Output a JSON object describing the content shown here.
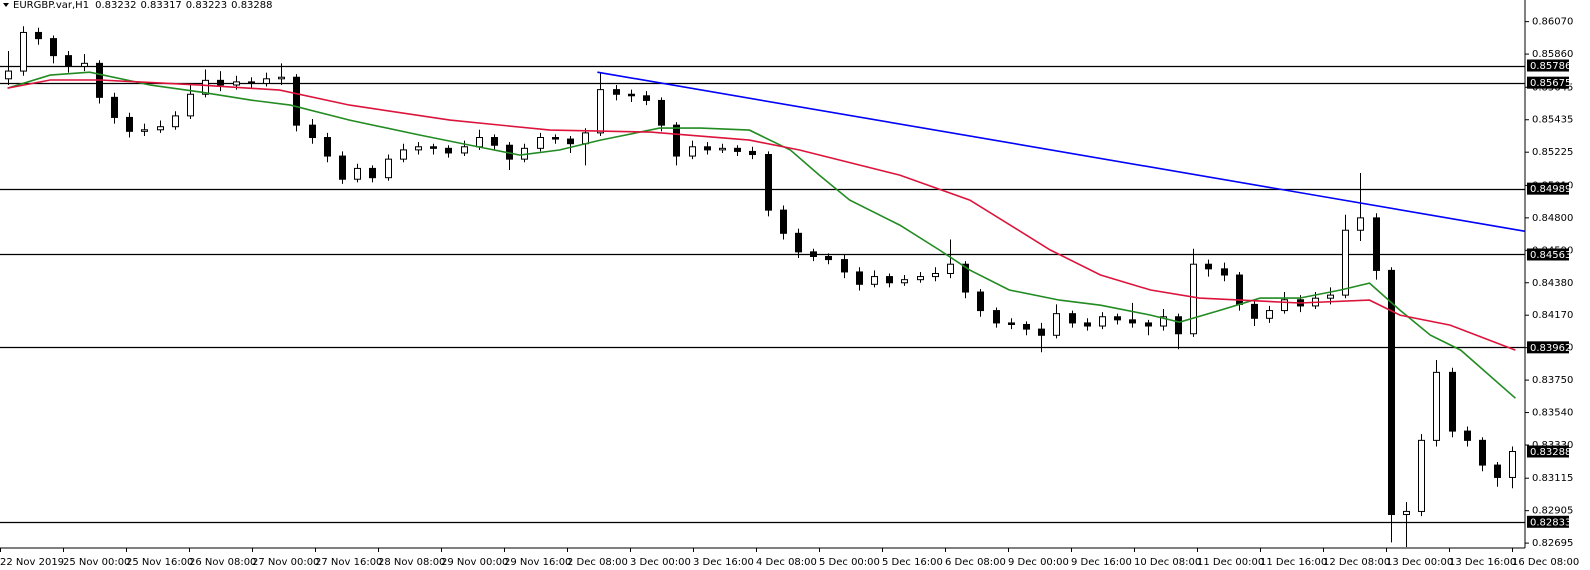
{
  "header": {
    "symbol": "EURGBP.var,H1",
    "open": 0.83232,
    "high": 0.83317,
    "low": 0.83223,
    "close": 0.83288
  },
  "chart_data": {
    "type": "candlestick",
    "candles": [
      [
        0.857,
        0.8588,
        0.8566,
        0.8575
      ],
      [
        0.8575,
        0.8604,
        0.8572,
        0.86
      ],
      [
        0.86,
        0.8603,
        0.8592,
        0.8596
      ],
      [
        0.8596,
        0.8598,
        0.858,
        0.8585
      ],
      [
        0.8585,
        0.8588,
        0.8574,
        0.8578
      ],
      [
        0.8578,
        0.8586,
        0.8575,
        0.858
      ],
      [
        0.858,
        0.8582,
        0.8554,
        0.8558
      ],
      [
        0.8558,
        0.8561,
        0.8541,
        0.8545
      ],
      [
        0.8545,
        0.8548,
        0.8532,
        0.8536
      ],
      [
        0.8536,
        0.8541,
        0.8533,
        0.8537
      ],
      [
        0.8537,
        0.8543,
        0.8535,
        0.8539
      ],
      [
        0.8539,
        0.8549,
        0.8537,
        0.8546
      ],
      [
        0.8546,
        0.8566,
        0.8544,
        0.856
      ],
      [
        0.856,
        0.8576,
        0.8558,
        0.8569
      ],
      [
        0.8569,
        0.8575,
        0.8562,
        0.8566
      ],
      [
        0.8566,
        0.8572,
        0.8563,
        0.8568
      ],
      [
        0.8568,
        0.8571,
        0.8564,
        0.8567
      ],
      [
        0.8567,
        0.8574,
        0.8565,
        0.857
      ],
      [
        0.857,
        0.858,
        0.8566,
        0.8571
      ],
      [
        0.8571,
        0.8573,
        0.8536,
        0.854
      ],
      [
        0.854,
        0.8544,
        0.8528,
        0.8532
      ],
      [
        0.8532,
        0.8535,
        0.8516,
        0.852
      ],
      [
        0.852,
        0.8523,
        0.8502,
        0.8505
      ],
      [
        0.8505,
        0.8515,
        0.8503,
        0.8512
      ],
      [
        0.8512,
        0.8514,
        0.8503,
        0.8506
      ],
      [
        0.8506,
        0.8521,
        0.8504,
        0.8518
      ],
      [
        0.8518,
        0.8528,
        0.8516,
        0.8524
      ],
      [
        0.8524,
        0.8529,
        0.8521,
        0.8526
      ],
      [
        0.8526,
        0.8528,
        0.8521,
        0.8525
      ],
      [
        0.8525,
        0.8527,
        0.8519,
        0.8522
      ],
      [
        0.8522,
        0.853,
        0.852,
        0.8526
      ],
      [
        0.8526,
        0.8537,
        0.8524,
        0.8532
      ],
      [
        0.8532,
        0.8534,
        0.8524,
        0.8527
      ],
      [
        0.8527,
        0.8529,
        0.8511,
        0.8518
      ],
      [
        0.8518,
        0.8528,
        0.8516,
        0.8525
      ],
      [
        0.8525,
        0.8535,
        0.8523,
        0.8532
      ],
      [
        0.8532,
        0.8534,
        0.8528,
        0.8531
      ],
      [
        0.8531,
        0.8533,
        0.8522,
        0.8528
      ],
      [
        0.8528,
        0.8538,
        0.8514,
        0.8535
      ],
      [
        0.8535,
        0.8574,
        0.8533,
        0.8563
      ],
      [
        0.8563,
        0.8566,
        0.8556,
        0.856
      ],
      [
        0.856,
        0.8563,
        0.8555,
        0.8559
      ],
      [
        0.8559,
        0.8562,
        0.8553,
        0.8556
      ],
      [
        0.8556,
        0.8558,
        0.8536,
        0.854
      ],
      [
        0.854,
        0.8542,
        0.8514,
        0.852
      ],
      [
        0.852,
        0.853,
        0.8518,
        0.8526
      ],
      [
        0.8526,
        0.8529,
        0.8521,
        0.8524
      ],
      [
        0.8524,
        0.8528,
        0.8522,
        0.8525
      ],
      [
        0.8525,
        0.8527,
        0.852,
        0.8523
      ],
      [
        0.8523,
        0.8526,
        0.8518,
        0.8521
      ],
      [
        0.8521,
        0.8523,
        0.8481,
        0.8485
      ],
      [
        0.8485,
        0.8488,
        0.8466,
        0.847
      ],
      [
        0.847,
        0.8473,
        0.8454,
        0.8458
      ],
      [
        0.8458,
        0.846,
        0.8452,
        0.8455
      ],
      [
        0.8455,
        0.8457,
        0.845,
        0.8453
      ],
      [
        0.8453,
        0.8456,
        0.8441,
        0.8445
      ],
      [
        0.8445,
        0.8448,
        0.8433,
        0.8437
      ],
      [
        0.8437,
        0.8446,
        0.8435,
        0.8442
      ],
      [
        0.8442,
        0.8444,
        0.8435,
        0.8438
      ],
      [
        0.8438,
        0.8443,
        0.8436,
        0.844
      ],
      [
        0.844,
        0.8445,
        0.8438,
        0.8442
      ],
      [
        0.8442,
        0.8448,
        0.8439,
        0.8444
      ],
      [
        0.8444,
        0.8466,
        0.8441,
        0.845
      ],
      [
        0.845,
        0.8452,
        0.8428,
        0.8432
      ],
      [
        0.8432,
        0.8434,
        0.8416,
        0.842
      ],
      [
        0.842,
        0.8422,
        0.8409,
        0.8412
      ],
      [
        0.8412,
        0.8415,
        0.8408,
        0.8411
      ],
      [
        0.8411,
        0.8413,
        0.8404,
        0.8408
      ],
      [
        0.8408,
        0.8412,
        0.8393,
        0.8404
      ],
      [
        0.8404,
        0.8424,
        0.8402,
        0.8418
      ],
      [
        0.8418,
        0.842,
        0.8409,
        0.8412
      ],
      [
        0.8412,
        0.8415,
        0.8407,
        0.841
      ],
      [
        0.841,
        0.8419,
        0.8408,
        0.8416
      ],
      [
        0.8416,
        0.8418,
        0.8411,
        0.8414
      ],
      [
        0.8414,
        0.8425,
        0.8409,
        0.8412
      ],
      [
        0.8412,
        0.8414,
        0.8404,
        0.841
      ],
      [
        0.841,
        0.8421,
        0.8407,
        0.8416
      ],
      [
        0.8416,
        0.8418,
        0.8395,
        0.8405
      ],
      [
        0.8405,
        0.846,
        0.8403,
        0.845
      ],
      [
        0.845,
        0.8453,
        0.8442,
        0.8447
      ],
      [
        0.8447,
        0.8451,
        0.8439,
        0.8443
      ],
      [
        0.8443,
        0.8445,
        0.842,
        0.8424
      ],
      [
        0.8424,
        0.8426,
        0.841,
        0.8415
      ],
      [
        0.8415,
        0.8423,
        0.8412,
        0.842
      ],
      [
        0.842,
        0.8432,
        0.8418,
        0.8427
      ],
      [
        0.8427,
        0.843,
        0.8419,
        0.8423
      ],
      [
        0.8423,
        0.8432,
        0.8421,
        0.8428
      ],
      [
        0.8428,
        0.8435,
        0.8424,
        0.843
      ],
      [
        0.843,
        0.8482,
        0.8428,
        0.8472
      ],
      [
        0.8472,
        0.8509,
        0.8465,
        0.848
      ],
      [
        0.848,
        0.8483,
        0.844,
        0.8446
      ],
      [
        0.8446,
        0.8448,
        0.827,
        0.8288
      ],
      [
        0.8288,
        0.8296,
        0.8267,
        0.829
      ],
      [
        0.829,
        0.834,
        0.8287,
        0.8336
      ],
      [
        0.8336,
        0.8388,
        0.8332,
        0.838
      ],
      [
        0.838,
        0.8383,
        0.8338,
        0.8342
      ],
      [
        0.8342,
        0.8345,
        0.8332,
        0.8336
      ],
      [
        0.8336,
        0.8338,
        0.8316,
        0.832
      ],
      [
        0.832,
        0.8322,
        0.8306,
        0.8312
      ],
      [
        0.8312,
        0.8332,
        0.8305,
        0.83288
      ]
    ],
    "bull_color": "#ffffff",
    "bear_color": "#000000",
    "candle_outline": "#000000",
    "moving_averages": [
      {
        "color": "#228b22",
        "x": [
          0,
          2.8,
          5.4,
          9.4,
          12.7,
          16,
          18.6,
          22.5,
          27.1,
          30.4,
          33.7,
          36.3,
          39,
          42.9,
          45.6,
          48.8,
          51.5,
          53.4,
          55.4,
          58.7,
          61.3,
          63.3,
          65.9,
          69.2,
          71.9,
          75.2,
          77.1,
          79.8,
          82.4,
          85,
          87.7,
          89.6,
          91.6,
          93.6,
          95.6,
          99.2
        ],
        "values": [
          0.8564,
          0.85724,
          0.85743,
          0.85659,
          0.85614,
          0.85562,
          0.8553,
          0.85433,
          0.85336,
          0.85271,
          0.85206,
          0.85239,
          0.85303,
          0.85381,
          0.85381,
          0.85368,
          0.85239,
          0.85077,
          0.84915,
          0.84753,
          0.84592,
          0.84462,
          0.84333,
          0.84268,
          0.84235,
          0.84171,
          0.84125,
          0.84203,
          0.84281,
          0.84281,
          0.84333,
          0.84378,
          0.84203,
          0.84041,
          0.83944,
          0.83633
        ]
      },
      {
        "color": "#dc143c",
        "x": [
          0,
          2.8,
          6.1,
          12.7,
          17.9,
          22.5,
          29.1,
          35.7,
          42.3,
          48.8,
          52.1,
          58.7,
          63.3,
          68.6,
          71.9,
          75.2,
          78.4,
          85,
          89.6,
          91.6,
          94.9,
          99.2
        ],
        "values": [
          0.8564,
          0.85692,
          0.85692,
          0.85659,
          0.85627,
          0.8553,
          0.85433,
          0.85368,
          0.85355,
          0.85303,
          0.85239,
          0.85077,
          0.84915,
          0.84592,
          0.8443,
          0.84333,
          0.84281,
          0.84249,
          0.84268,
          0.84171,
          0.84106,
          0.83944
        ]
      }
    ],
    "trendline": {
      "color": "#0000ff",
      "x": [
        38.8,
        99.8
      ],
      "values": [
        0.85743,
        0.84714
      ]
    },
    "levels": [
      0.85786,
      0.85675,
      0.84989,
      0.84563,
      0.83962,
      0.82833
    ],
    "level_color": "#000000",
    "last_price": 0.83288,
    "ylim": [
      0.8262,
      0.8621
    ],
    "yticks": [
      {
        "value": 0.8607,
        "label": "0.86070"
      },
      {
        "value": 0.8586,
        "label": "0.85860"
      },
      {
        "value": 0.85645,
        "label": "0.85645"
      },
      {
        "value": 0.85435,
        "label": "0.85435"
      },
      {
        "value": 0.85225,
        "label": "0.85225"
      },
      {
        "value": 0.8501,
        "label": "0.85010"
      },
      {
        "value": 0.848,
        "label": "0.84800"
      },
      {
        "value": 0.8459,
        "label": "0.84590"
      },
      {
        "value": 0.8438,
        "label": "0.84380"
      },
      {
        "value": 0.8417,
        "label": "0.84170"
      },
      {
        "value": 0.8396,
        "label": "0.83960"
      },
      {
        "value": 0.8375,
        "label": "0.83750"
      },
      {
        "value": 0.8354,
        "label": "0.83540"
      },
      {
        "value": 0.8333,
        "label": "0.83330"
      },
      {
        "value": 0.83115,
        "label": "0.83115"
      },
      {
        "value": 0.82905,
        "label": "0.82905"
      },
      {
        "value": 0.82695,
        "label": "0.82695"
      }
    ],
    "x_labels": [
      "22 Nov 2019",
      "25 Nov 00:00",
      "25 Nov 16:00",
      "26 Nov 08:00",
      "27 Nov 00:00",
      "27 Nov 16:00",
      "28 Nov 08:00",
      "29 Nov 00:00",
      "29 Nov 16:00",
      "2 Dec 08:00",
      "3 Dec 00:00",
      "3 Dec 16:00",
      "4 Dec 08:00",
      "5 Dec 00:00",
      "5 Dec 16:00",
      "6 Dec 08:00",
      "9 Dec 00:00",
      "9 Dec 16:00",
      "10 Dec 08:00",
      "11 Dec 00:00",
      "11 Dec 16:00",
      "12 Dec 08:00",
      "13 Dec 00:00",
      "13 Dec 16:00",
      "16 Dec 08:00"
    ]
  }
}
